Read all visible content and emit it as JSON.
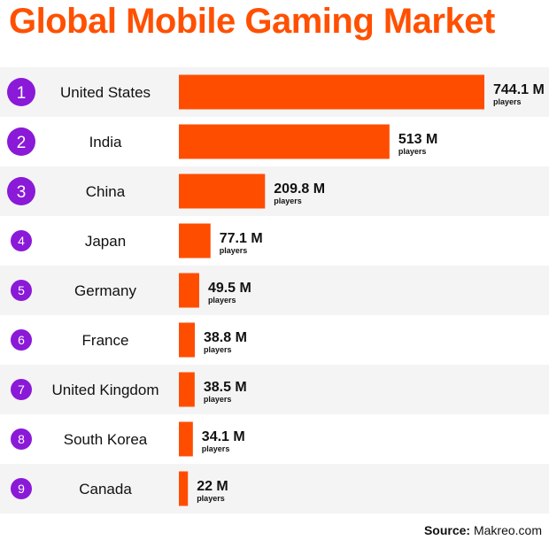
{
  "title": "Global Mobile Gaming Market",
  "source_label": "Source:",
  "source_value": "Makreo.com",
  "colors": {
    "title": "#ff5000",
    "bar": "#ff4d00",
    "badge": "#8a19d8",
    "row_alt": "#f4f4f4",
    "text": "#111111"
  },
  "chart_data": {
    "type": "bar",
    "orientation": "horizontal",
    "title": "Global Mobile Gaming Market",
    "value_suffix": "players",
    "categories": [
      "United States",
      "India",
      "China",
      "Japan",
      "Germany",
      "France",
      "United Kingdom",
      "South Korea",
      "Canada"
    ],
    "ranks": [
      "1",
      "2",
      "3",
      "4",
      "5",
      "6",
      "7",
      "8",
      "9"
    ],
    "values": [
      744.1,
      513,
      209.8,
      77.1,
      49.5,
      38.8,
      38.5,
      34.1,
      22
    ],
    "value_labels": [
      "744.1 M",
      "513 M",
      "209.8 M",
      "77.1 M",
      "49.5 M",
      "38.8 M",
      "38.5 M",
      "34.1 M",
      "22 M"
    ],
    "xlim": [
      0,
      744.1
    ],
    "grid": false,
    "legend": "none"
  }
}
